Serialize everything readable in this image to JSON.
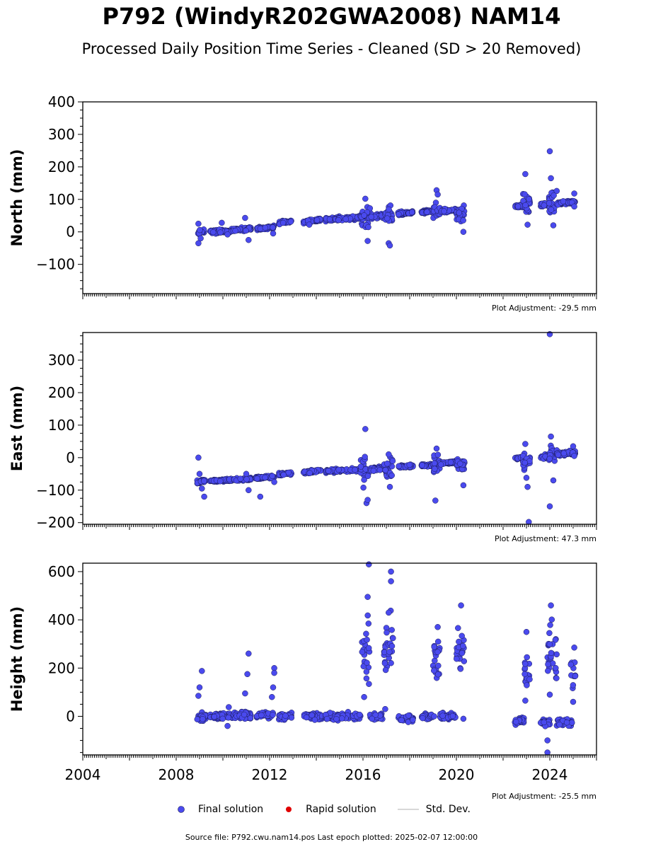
{
  "title": "P792 (WindyR202GWA2008) NAM14",
  "subtitle": "Processed Daily Position Time Series - Cleaned (SD > 20 Removed)",
  "source_text": "Source file: P792.cwu.nam14.pos  Last epoch plotted: 2025-02-07 12:00:00",
  "legend": {
    "final": "Final solution",
    "rapid": "Rapid solution",
    "stddev": "Std. Dev."
  },
  "colors": {
    "final_fill": "#4a4aee",
    "final_edge": "#1a1a55",
    "rapid": "#e00000",
    "stddev": "#cccccc"
  },
  "chart_data": [
    {
      "type": "scatter",
      "ylabel": "North (mm)",
      "adjustment": "Plot Adjustment: -29.5 mm",
      "xlim": [
        2004,
        2026
      ],
      "ylim": [
        -190,
        400
      ],
      "yticks": [
        -100,
        0,
        100,
        200,
        300,
        400
      ],
      "xticks": [],
      "segments": [
        {
          "x": [
            2008.9,
            2009.25
          ],
          "y": [
            -5,
            5
          ],
          "spread": 6,
          "outliers": [
            [
              2008.95,
              25
            ],
            [
              2008.95,
              -35
            ],
            [
              2009.05,
              -20
            ]
          ]
        },
        {
          "x": [
            2009.45,
            2010.4
          ],
          "y": [
            0,
            3
          ],
          "spread": 5,
          "outliers": [
            [
              2009.95,
              28
            ],
            [
              2010.2,
              -8
            ]
          ]
        },
        {
          "x": [
            2010.45,
            2011.2
          ],
          "y": [
            5,
            10
          ],
          "spread": 5,
          "outliers": [
            [
              2010.95,
              43
            ],
            [
              2011.1,
              -25
            ]
          ]
        },
        {
          "x": [
            2011.45,
            2012.2
          ],
          "y": [
            10,
            15
          ],
          "spread": 4,
          "outliers": [
            [
              2012.15,
              -5
            ]
          ]
        },
        {
          "x": [
            2012.4,
            2012.95
          ],
          "y": [
            28,
            33
          ],
          "spread": 4,
          "outliers": []
        },
        {
          "x": [
            2013.45,
            2014.2
          ],
          "y": [
            30,
            38
          ],
          "spread": 5,
          "outliers": [
            [
              2013.7,
              22
            ]
          ]
        },
        {
          "x": [
            2014.4,
            2016.05
          ],
          "y": [
            38,
            45
          ],
          "spread": 5,
          "outliers": []
        },
        {
          "x": [
            2015.9,
            2016.3
          ],
          "y": [
            40,
            45
          ],
          "spread": 30,
          "outliers": [
            [
              2016.1,
              102
            ],
            [
              2016.2,
              -28
            ]
          ]
        },
        {
          "x": [
            2016.35,
            2016.9
          ],
          "y": [
            45,
            50
          ],
          "spread": 6,
          "outliers": []
        },
        {
          "x": [
            2016.9,
            2017.25
          ],
          "y": [
            45,
            50
          ],
          "spread": 25,
          "outliers": [
            [
              2017.1,
              -35
            ],
            [
              2017.15,
              -42
            ]
          ]
        },
        {
          "x": [
            2017.5,
            2018.15
          ],
          "y": [
            55,
            60
          ],
          "spread": 5,
          "outliers": []
        },
        {
          "x": [
            2018.5,
            2019.0
          ],
          "y": [
            60,
            64
          ],
          "spread": 4,
          "outliers": []
        },
        {
          "x": [
            2019.0,
            2019.3
          ],
          "y": [
            60,
            65
          ],
          "spread": 20,
          "outliers": [
            [
              2019.15,
              128
            ],
            [
              2019.2,
              115
            ]
          ]
        },
        {
          "x": [
            2019.3,
            2020.15
          ],
          "y": [
            64,
            68
          ],
          "spread": 5,
          "outliers": []
        },
        {
          "x": [
            2020.0,
            2020.35
          ],
          "y": [
            50,
            55
          ],
          "spread": 25,
          "outliers": [
            [
              2020.3,
              0
            ]
          ]
        },
        {
          "x": [
            2022.5,
            2022.95
          ],
          "y": [
            78,
            80
          ],
          "spread": 3,
          "outliers": []
        },
        {
          "x": [
            2022.85,
            2023.15
          ],
          "y": [
            75,
            90
          ],
          "spread": 30,
          "outliers": [
            [
              2022.95,
              178
            ],
            [
              2023.05,
              22
            ]
          ]
        },
        {
          "x": [
            2023.6,
            2024.0
          ],
          "y": [
            82,
            88
          ],
          "spread": 5,
          "outliers": []
        },
        {
          "x": [
            2023.95,
            2024.3
          ],
          "y": [
            85,
            100
          ],
          "spread": 30,
          "outliers": [
            [
              2024.0,
              248
            ],
            [
              2024.05,
              165
            ],
            [
              2024.15,
              20
            ]
          ]
        },
        {
          "x": [
            2024.3,
            2025.1
          ],
          "y": [
            88,
            92
          ],
          "spread": 4,
          "outliers": [
            [
              2025.05,
              118
            ],
            [
              2025.05,
              78
            ]
          ]
        }
      ]
    },
    {
      "type": "scatter",
      "ylabel": "East (mm)",
      "adjustment": "Plot Adjustment: 47.3 mm",
      "xlim": [
        2004,
        2026
      ],
      "ylim": [
        -205,
        385
      ],
      "yticks": [
        -200,
        -100,
        0,
        100,
        200,
        300
      ],
      "xticks": [],
      "segments": [
        {
          "x": [
            2008.9,
            2009.3
          ],
          "y": [
            -75,
            -70
          ],
          "spread": 5,
          "outliers": [
            [
              2008.95,
              0
            ],
            [
              2009.0,
              -50
            ],
            [
              2009.1,
              -95
            ],
            [
              2009.2,
              -120
            ]
          ]
        },
        {
          "x": [
            2009.45,
            2010.4
          ],
          "y": [
            -72,
            -68
          ],
          "spread": 4,
          "outliers": []
        },
        {
          "x": [
            2010.45,
            2011.2
          ],
          "y": [
            -68,
            -65
          ],
          "spread": 4,
          "outliers": [
            [
              2011.0,
              -50
            ],
            [
              2011.1,
              -100
            ]
          ]
        },
        {
          "x": [
            2011.4,
            2012.2
          ],
          "y": [
            -63,
            -58
          ],
          "spread": 4,
          "outliers": [
            [
              2011.6,
              -120
            ],
            [
              2012.2,
              -75
            ]
          ]
        },
        {
          "x": [
            2012.4,
            2012.95
          ],
          "y": [
            -52,
            -48
          ],
          "spread": 4,
          "outliers": []
        },
        {
          "x": [
            2013.45,
            2014.2
          ],
          "y": [
            -45,
            -40
          ],
          "spread": 4,
          "outliers": []
        },
        {
          "x": [
            2014.4,
            2015.95
          ],
          "y": [
            -42,
            -37
          ],
          "spread": 4,
          "outliers": []
        },
        {
          "x": [
            2015.9,
            2016.3
          ],
          "y": [
            -38,
            -34
          ],
          "spread": 40,
          "outliers": [
            [
              2016.1,
              88
            ],
            [
              2016.15,
              -140
            ],
            [
              2016.2,
              -130
            ]
          ]
        },
        {
          "x": [
            2016.3,
            2016.9
          ],
          "y": [
            -35,
            -32
          ],
          "spread": 5,
          "outliers": []
        },
        {
          "x": [
            2016.9,
            2017.3
          ],
          "y": [
            -35,
            -30
          ],
          "spread": 25,
          "outliers": [
            [
              2017.1,
              10
            ],
            [
              2017.15,
              -90
            ]
          ]
        },
        {
          "x": [
            2017.5,
            2018.15
          ],
          "y": [
            -28,
            -24
          ],
          "spread": 4,
          "outliers": []
        },
        {
          "x": [
            2018.5,
            2019.0
          ],
          "y": [
            -25,
            -22
          ],
          "spread": 4,
          "outliers": []
        },
        {
          "x": [
            2019.0,
            2019.3
          ],
          "y": [
            -20,
            -18
          ],
          "spread": 25,
          "outliers": [
            [
              2019.15,
              28
            ],
            [
              2019.1,
              -132
            ]
          ]
        },
        {
          "x": [
            2019.3,
            2020.1
          ],
          "y": [
            -18,
            -14
          ],
          "spread": 4,
          "outliers": []
        },
        {
          "x": [
            2020.0,
            2020.35
          ],
          "y": [
            -25,
            -20
          ],
          "spread": 20,
          "outliers": [
            [
              2020.3,
              -85
            ]
          ]
        },
        {
          "x": [
            2022.5,
            2022.9
          ],
          "y": [
            -3,
            0
          ],
          "spread": 3,
          "outliers": []
        },
        {
          "x": [
            2022.85,
            2023.15
          ],
          "y": [
            -10,
            -5
          ],
          "spread": 20,
          "outliers": [
            [
              2022.95,
              42
            ],
            [
              2023.0,
              -62
            ],
            [
              2023.05,
              -90
            ],
            [
              2023.1,
              -198
            ]
          ]
        },
        {
          "x": [
            2023.6,
            2024.0
          ],
          "y": [
            0,
            5
          ],
          "spread": 5,
          "outliers": []
        },
        {
          "x": [
            2023.95,
            2024.3
          ],
          "y": [
            5,
            10
          ],
          "spread": 25,
          "outliers": [
            [
              2024.0,
              380
            ],
            [
              2024.05,
              65
            ],
            [
              2024.0,
              -150
            ],
            [
              2024.15,
              -70
            ]
          ]
        },
        {
          "x": [
            2024.3,
            2025.1
          ],
          "y": [
            10,
            15
          ],
          "spread": 5,
          "outliers": [
            [
              2025.0,
              35
            ],
            [
              2025.05,
              5
            ]
          ]
        }
      ]
    },
    {
      "type": "scatter",
      "ylabel": "Height (mm)",
      "adjustment": "Plot Adjustment: -25.5 mm",
      "xlim": [
        2004,
        2026
      ],
      "ylim": [
        -160,
        635
      ],
      "yticks": [
        0,
        200,
        400,
        600
      ],
      "xticks": [
        2004,
        2008,
        2012,
        2016,
        2020,
        2024
      ],
      "segments": [
        {
          "x": [
            2008.9,
            2009.3
          ],
          "y": [
            0,
            0
          ],
          "spread": 15,
          "outliers": [
            [
              2009.0,
              120
            ],
            [
              2009.1,
              188
            ],
            [
              2008.95,
              85
            ]
          ]
        },
        {
          "x": [
            2009.45,
            2010.4
          ],
          "y": [
            0,
            0
          ],
          "spread": 12,
          "outliers": [
            [
              2010.25,
              38
            ],
            [
              2010.2,
              -40
            ]
          ]
        },
        {
          "x": [
            2010.45,
            2011.2
          ],
          "y": [
            5,
            5
          ],
          "spread": 15,
          "outliers": [
            [
              2011.1,
              260
            ],
            [
              2011.05,
              175
            ],
            [
              2010.95,
              95
            ]
          ]
        },
        {
          "x": [
            2011.45,
            2012.2
          ],
          "y": [
            5,
            5
          ],
          "spread": 10,
          "outliers": [
            [
              2012.2,
              200
            ],
            [
              2012.2,
              180
            ],
            [
              2012.15,
              120
            ],
            [
              2012.1,
              80
            ]
          ]
        },
        {
          "x": [
            2012.4,
            2012.95
          ],
          "y": [
            0,
            0
          ],
          "spread": 12,
          "outliers": []
        },
        {
          "x": [
            2013.45,
            2014.3
          ],
          "y": [
            0,
            0
          ],
          "spread": 12,
          "outliers": []
        },
        {
          "x": [
            2014.4,
            2015.9
          ],
          "y": [
            0,
            0
          ],
          "spread": 12,
          "outliers": []
        },
        {
          "x": [
            2015.95,
            2016.3
          ],
          "y": [
            250,
            250
          ],
          "spread": 120,
          "outliers": [
            [
              2016.25,
              630
            ],
            [
              2016.2,
              495
            ],
            [
              2016.05,
              80
            ]
          ]
        },
        {
          "x": [
            2016.3,
            2016.85
          ],
          "y": [
            0,
            0
          ],
          "spread": 12,
          "outliers": []
        },
        {
          "x": [
            2016.9,
            2017.3
          ],
          "y": [
            280,
            280
          ],
          "spread": 100,
          "outliers": [
            [
              2017.2,
              600
            ],
            [
              2017.2,
              560
            ],
            [
              2017.1,
              430
            ],
            [
              2016.95,
              30
            ]
          ]
        },
        {
          "x": [
            2017.5,
            2018.15
          ],
          "y": [
            -10,
            -10
          ],
          "spread": 12,
          "outliers": []
        },
        {
          "x": [
            2018.5,
            2019.0
          ],
          "y": [
            0,
            0
          ],
          "spread": 10,
          "outliers": []
        },
        {
          "x": [
            2019.0,
            2019.3
          ],
          "y": [
            250,
            250
          ],
          "spread": 100,
          "outliers": [
            [
              2019.2,
              370
            ],
            [
              2019.05,
              0
            ]
          ]
        },
        {
          "x": [
            2019.3,
            2020.0
          ],
          "y": [
            0,
            0
          ],
          "spread": 12,
          "outliers": []
        },
        {
          "x": [
            2020.0,
            2020.35
          ],
          "y": [
            280,
            280
          ],
          "spread": 100,
          "outliers": [
            [
              2020.2,
              460
            ],
            [
              2020.3,
              -10
            ]
          ]
        },
        {
          "x": [
            2022.5,
            2022.9
          ],
          "y": [
            -20,
            -20
          ],
          "spread": 12,
          "outliers": []
        },
        {
          "x": [
            2022.9,
            2023.15
          ],
          "y": [
            180,
            180
          ],
          "spread": 80,
          "outliers": [
            [
              2023.0,
              350
            ],
            [
              2022.95,
              65
            ]
          ]
        },
        {
          "x": [
            2023.6,
            2024.0
          ],
          "y": [
            -25,
            -25
          ],
          "spread": 15,
          "outliers": [
            [
              2023.9,
              -100
            ],
            [
              2023.9,
              -150
            ]
          ]
        },
        {
          "x": [
            2023.9,
            2024.3
          ],
          "y": [
            250,
            250
          ],
          "spread": 110,
          "outliers": [
            [
              2024.05,
              460
            ],
            [
              2024.0,
              90
            ]
          ]
        },
        {
          "x": [
            2024.3,
            2024.95
          ],
          "y": [
            -25,
            -25
          ],
          "spread": 12,
          "outliers": []
        },
        {
          "x": [
            2024.9,
            2025.1
          ],
          "y": [
            170,
            170
          ],
          "spread": 70,
          "outliers": [
            [
              2025.05,
              285
            ],
            [
              2025.0,
              60
            ]
          ]
        }
      ]
    }
  ]
}
